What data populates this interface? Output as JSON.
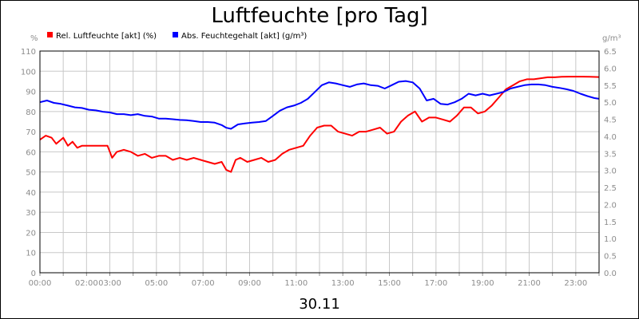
{
  "chart_data": {
    "type": "line",
    "title": "Luftfeuchte [pro Tag]",
    "date_label": "30.11",
    "y_left_unit": "%",
    "y_right_unit": "g/m³",
    "ylim_left": [
      0,
      110
    ],
    "ylim_right": [
      0,
      6.5
    ],
    "y_left_ticks": [
      0,
      10,
      20,
      30,
      40,
      50,
      60,
      70,
      80,
      90,
      100,
      110
    ],
    "y_right_ticks": [
      "0.0",
      "0.5",
      "1.0",
      "1.5",
      "2.0",
      "2.5",
      "3.0",
      "3.5",
      "4.0",
      "4.5",
      "5.0",
      "5.5",
      "6.0",
      "6.5"
    ],
    "x_range_hours": [
      0,
      24
    ],
    "x_tick_labels": [
      "00:00",
      "02:00",
      "03:00",
      "05:00",
      "07:00",
      "09:00",
      "11:00",
      "13:00",
      "15:00",
      "17:00",
      "19:00",
      "21:00",
      "23:00"
    ],
    "grid": true,
    "legend_placement": "top-left",
    "series": [
      {
        "name": "Rel. Luftfeuchte [akt] (%)",
        "color": "#ff0000",
        "axis": "left",
        "x_hours": [
          0.0,
          0.25,
          0.5,
          0.7,
          1.0,
          1.2,
          1.4,
          1.6,
          1.8,
          2.0,
          2.3,
          2.6,
          2.9,
          3.1,
          3.3,
          3.6,
          3.9,
          4.2,
          4.5,
          4.8,
          5.1,
          5.4,
          5.7,
          6.0,
          6.3,
          6.6,
          6.9,
          7.2,
          7.5,
          7.8,
          8.0,
          8.2,
          8.4,
          8.6,
          8.9,
          9.2,
          9.5,
          9.8,
          10.1,
          10.4,
          10.7,
          11.0,
          11.3,
          11.6,
          11.9,
          12.2,
          12.5,
          12.8,
          13.1,
          13.4,
          13.7,
          14.0,
          14.3,
          14.6,
          14.9,
          15.2,
          15.5,
          15.8,
          16.1,
          16.4,
          16.7,
          17.0,
          17.3,
          17.6,
          17.9,
          18.2,
          18.5,
          18.8,
          19.1,
          19.4,
          19.7,
          20.0,
          20.3,
          20.6,
          20.9,
          21.2,
          21.5,
          21.8,
          22.1,
          22.4,
          22.7,
          23.0,
          23.3,
          23.6,
          24.0
        ],
        "values": [
          66,
          68,
          67,
          64,
          67,
          63,
          65,
          62,
          63,
          63,
          63,
          63,
          63,
          57,
          60,
          61,
          60,
          58,
          59,
          57,
          58,
          58,
          56,
          57,
          56,
          57,
          56,
          55,
          54,
          55,
          51,
          50,
          56,
          57,
          55,
          56,
          57,
          55,
          56,
          59,
          61,
          62,
          63,
          68,
          72,
          73,
          73,
          70,
          69,
          68,
          70,
          70,
          71,
          72,
          69,
          70,
          75,
          78,
          80,
          75,
          77,
          77,
          76,
          75,
          78,
          82,
          82,
          79,
          80,
          83,
          87,
          91,
          93,
          95,
          96,
          96,
          96.5,
          97,
          97,
          97.2,
          97.3,
          97.3,
          97.3,
          97.2,
          97.1
        ]
      },
      {
        "name": "Abs. Feuchtegehalt [akt] (g/m³)",
        "color": "#0000ff",
        "axis": "right",
        "x_hours": [
          0.0,
          0.3,
          0.6,
          0.9,
          1.2,
          1.5,
          1.8,
          2.1,
          2.4,
          2.7,
          3.0,
          3.3,
          3.6,
          3.9,
          4.2,
          4.5,
          4.8,
          5.1,
          5.4,
          5.7,
          6.0,
          6.3,
          6.6,
          6.9,
          7.2,
          7.5,
          7.8,
          8.0,
          8.2,
          8.5,
          8.8,
          9.1,
          9.4,
          9.7,
          10.0,
          10.3,
          10.6,
          10.9,
          11.2,
          11.5,
          11.8,
          12.1,
          12.4,
          12.7,
          13.0,
          13.3,
          13.6,
          13.9,
          14.2,
          14.5,
          14.8,
          15.1,
          15.4,
          15.7,
          16.0,
          16.3,
          16.6,
          16.9,
          17.2,
          17.5,
          17.8,
          18.1,
          18.4,
          18.7,
          19.0,
          19.3,
          19.6,
          19.9,
          20.2,
          20.5,
          20.8,
          21.1,
          21.4,
          21.7,
          22.0,
          22.3,
          22.6,
          22.9,
          23.2,
          23.5,
          23.8,
          24.0
        ],
        "values": [
          5.0,
          5.05,
          4.98,
          4.95,
          4.9,
          4.85,
          4.83,
          4.78,
          4.76,
          4.72,
          4.7,
          4.65,
          4.65,
          4.62,
          4.65,
          4.6,
          4.58,
          4.52,
          4.52,
          4.5,
          4.48,
          4.47,
          4.45,
          4.42,
          4.42,
          4.4,
          4.33,
          4.25,
          4.22,
          4.35,
          4.38,
          4.4,
          4.42,
          4.45,
          4.6,
          4.75,
          4.85,
          4.9,
          4.98,
          5.1,
          5.3,
          5.5,
          5.58,
          5.55,
          5.5,
          5.45,
          5.52,
          5.55,
          5.5,
          5.48,
          5.4,
          5.5,
          5.6,
          5.62,
          5.58,
          5.4,
          5.05,
          5.1,
          4.95,
          4.93,
          5.0,
          5.1,
          5.25,
          5.2,
          5.25,
          5.2,
          5.25,
          5.3,
          5.4,
          5.45,
          5.5,
          5.52,
          5.52,
          5.5,
          5.45,
          5.42,
          5.38,
          5.33,
          5.25,
          5.18,
          5.12,
          5.1
        ]
      }
    ]
  }
}
